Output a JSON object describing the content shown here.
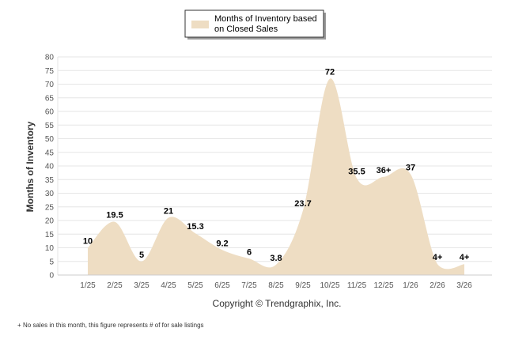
{
  "chart_data": {
    "type": "area",
    "title": "",
    "legend": {
      "entries": [
        "Months of Inventory based",
        "on Closed Sales"
      ],
      "placement": "top-center"
    },
    "categories": [
      "1/25",
      "2/25",
      "3/25",
      "4/25",
      "5/25",
      "6/25",
      "7/25",
      "8/25",
      "9/25",
      "10/25",
      "11/25",
      "12/25",
      "1/26",
      "2/26",
      "3/26"
    ],
    "series": [
      {
        "name": "Months of Inventory based on Closed Sales",
        "values": [
          10,
          19.5,
          5,
          21,
          15.3,
          9.2,
          6,
          3.8,
          23.7,
          72,
          35.5,
          36,
          37,
          4,
          4
        ],
        "labels": [
          "10",
          "19.5",
          "5",
          "21",
          "15.3",
          "9.2",
          "6",
          "3.8",
          "23.7",
          "72",
          "35.5",
          "36+",
          "37",
          "4+",
          "4+"
        ],
        "color": "#eeddc3"
      }
    ],
    "xlabel": "",
    "ylabel": "Months of Inventory",
    "ylim": [
      0,
      80
    ],
    "yticks": [
      0,
      5,
      10,
      15,
      20,
      25,
      30,
      35,
      40,
      45,
      50,
      55,
      60,
      65,
      70,
      75,
      80
    ],
    "grid": true
  },
  "copyright": "Copyright © Trendgraphix, Inc.",
  "footnote_symbol": "+",
  "footnote": "No sales in this month, this figure represents # of for sale listings"
}
